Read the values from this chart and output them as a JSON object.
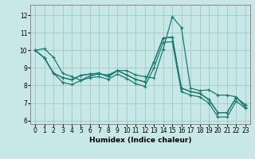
{
  "xlabel": "Humidex (Indice chaleur)",
  "background_color": "#c8e8e8",
  "grid_color": "#a0c8c8",
  "line_color": "#1a7a6e",
  "xlim": [
    -0.5,
    23.5
  ],
  "ylim": [
    5.8,
    12.6
  ],
  "yticks": [
    6,
    7,
    8,
    9,
    10,
    11,
    12
  ],
  "xticks": [
    0,
    1,
    2,
    3,
    4,
    5,
    6,
    7,
    8,
    9,
    10,
    11,
    12,
    13,
    14,
    15,
    16,
    17,
    18,
    19,
    20,
    21,
    22,
    23
  ],
  "series": [
    [
      10.0,
      10.1,
      9.6,
      8.7,
      8.5,
      8.3,
      8.55,
      8.65,
      8.6,
      8.85,
      8.85,
      8.6,
      8.5,
      8.42,
      10.05,
      11.92,
      11.3,
      7.85,
      7.7,
      7.75,
      7.45,
      7.45,
      7.35,
      6.75
    ],
    [
      10.0,
      9.58,
      8.7,
      8.45,
      8.32,
      8.58,
      8.65,
      8.7,
      8.5,
      8.85,
      8.6,
      8.35,
      8.2,
      9.35,
      10.7,
      10.75,
      7.85,
      7.65,
      7.55,
      7.2,
      6.45,
      6.45,
      7.3,
      6.9
    ],
    [
      10.0,
      9.58,
      8.7,
      8.45,
      8.32,
      8.58,
      8.65,
      8.7,
      8.5,
      8.85,
      8.6,
      8.35,
      8.2,
      9.35,
      10.7,
      10.75,
      7.85,
      7.65,
      7.55,
      7.2,
      6.45,
      6.45,
      7.3,
      6.9
    ],
    [
      10.0,
      9.58,
      8.7,
      8.18,
      8.05,
      8.28,
      8.45,
      8.5,
      8.35,
      8.65,
      8.4,
      8.1,
      7.95,
      9.0,
      10.45,
      10.5,
      7.65,
      7.45,
      7.35,
      7.0,
      6.2,
      6.2,
      7.1,
      6.7
    ]
  ],
  "figsize": [
    3.2,
    2.0
  ],
  "dpi": 100,
  "xlabel_fontsize": 6.5,
  "tick_labelsize": 5.5,
  "linewidth": 0.9,
  "markersize": 3.0
}
